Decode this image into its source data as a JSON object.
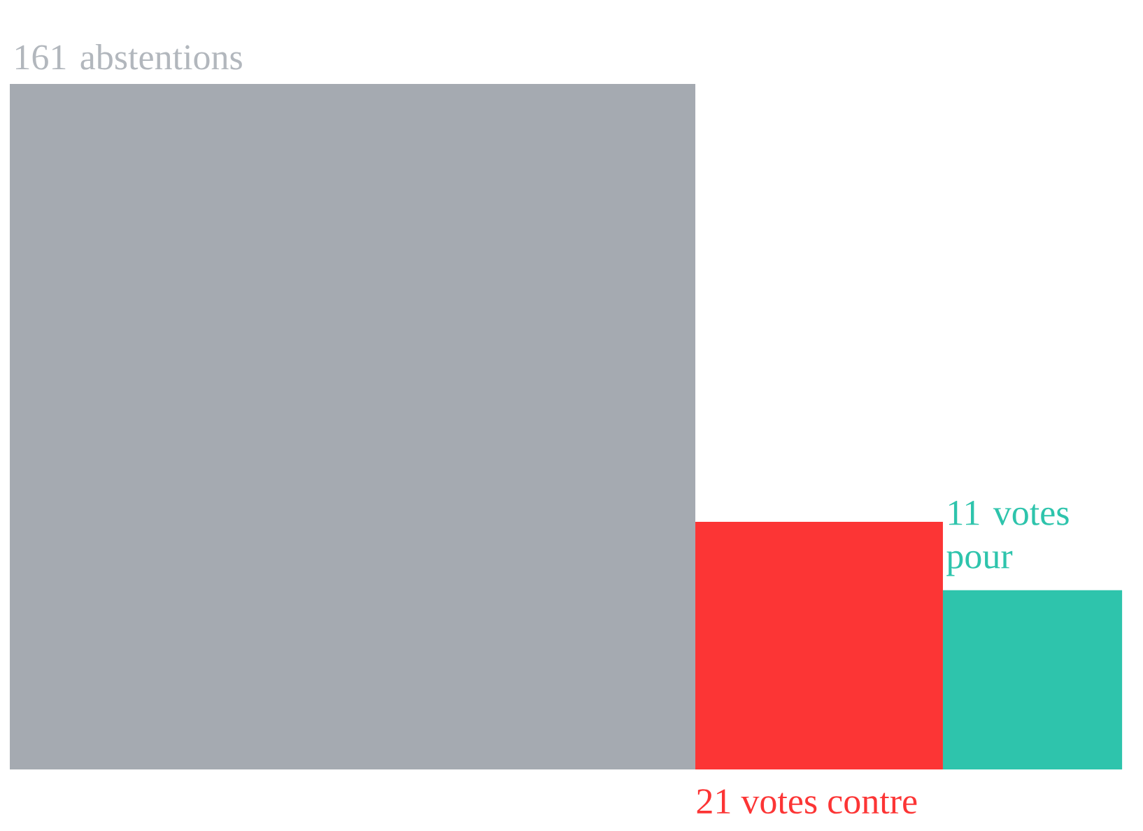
{
  "chart_data": {
    "type": "other",
    "categories": [
      "abstentions",
      "votes contre",
      "votes pour"
    ],
    "values": [
      161,
      21,
      11
    ],
    "colors": [
      "#a5aab1",
      "#fc3535",
      "#2ec4ac"
    ],
    "data_labels": true
  }
}
